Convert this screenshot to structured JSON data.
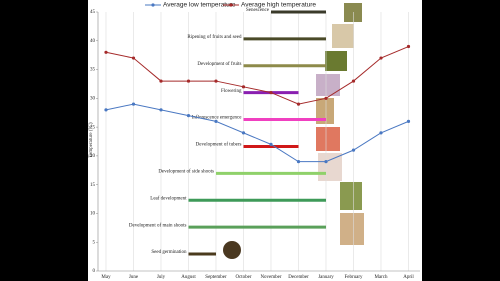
{
  "chart_data": {
    "type": "line",
    "y_label": "Temperature (°C)",
    "categories": [
      "May",
      "June",
      "July",
      "August",
      "September",
      "October",
      "November",
      "December",
      "January",
      "February",
      "March",
      "April"
    ],
    "series": [
      {
        "name": "Average low temperature",
        "color": "#4a78c2",
        "values": [
          28,
          29,
          28,
          27,
          26,
          24,
          22,
          19,
          19,
          21,
          24,
          26
        ]
      },
      {
        "name": "Average high temperature",
        "color": "#a52a2a",
        "values": [
          38,
          37,
          33,
          33,
          33,
          32,
          31,
          29,
          30,
          33,
          37,
          39
        ]
      }
    ],
    "ylim": [
      0,
      45
    ],
    "yticks": [
      0,
      5,
      10,
      15,
      20,
      25,
      30,
      35,
      40,
      45
    ],
    "grid": true,
    "stages": [
      {
        "label": "Seed germination",
        "start": "August",
        "end": "September",
        "color": "#4a3a1c"
      },
      {
        "label": "Development of main shoots",
        "start": "August",
        "end": "January",
        "color": "#5aa05a"
      },
      {
        "label": "Leaf development",
        "start": "August",
        "end": "January",
        "color": "#3e9a58"
      },
      {
        "label": "Development of side shoots",
        "start": "September",
        "end": "January",
        "color": "#8fd16a"
      },
      {
        "label": "Development of tubers",
        "start": "October",
        "end": "December",
        "color": "#d01818"
      },
      {
        "label": "Inflorescence emergence",
        "start": "October",
        "end": "January",
        "color": "#f040c0"
      },
      {
        "label": "Flowering",
        "start": "October",
        "end": "December",
        "color": "#8a1fb0"
      },
      {
        "label": "Development of fruits",
        "start": "October",
        "end": "January",
        "color": "#8d8a4a"
      },
      {
        "label": "Ripening of fruits and seed",
        "start": "October",
        "end": "January",
        "color": "#4a4a28"
      },
      {
        "label": "Senescence",
        "start": "November",
        "end": "January",
        "color": "#3a3a2a"
      }
    ]
  }
}
